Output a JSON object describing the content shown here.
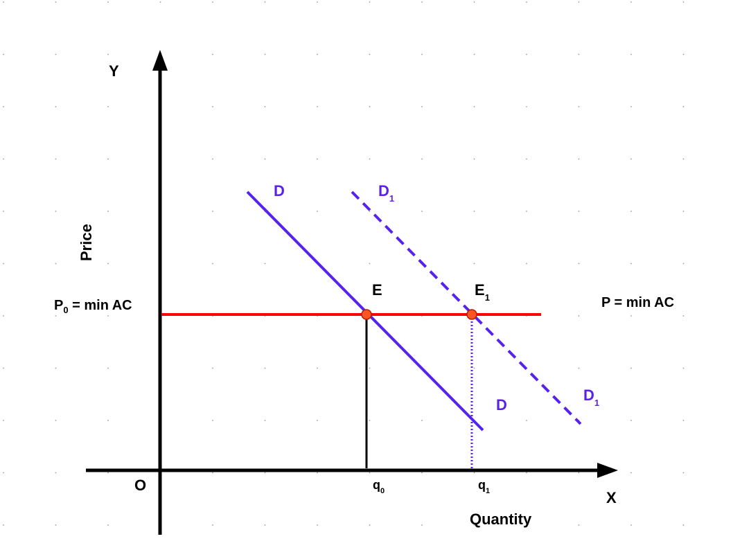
{
  "labels": {
    "y_axis": "Y",
    "x_axis": "X",
    "origin": "O",
    "y_title": "Price",
    "x_title": "Quantity",
    "price_left": {
      "main": "P",
      "sub": "0",
      "rest": " = min AC"
    },
    "price_right": "P = min AC",
    "demand_top": "D",
    "demand_bottom": "D",
    "demand1_top": {
      "main": "D",
      "sub": "1"
    },
    "demand1_bottom": {
      "main": "D",
      "sub": "1"
    },
    "equilibrium": "E",
    "equilibrium1": {
      "main": "E",
      "sub": "1"
    },
    "q0": {
      "main": "q",
      "sub": "0"
    },
    "q1": {
      "main": "q",
      "sub": "1"
    }
  }
}
